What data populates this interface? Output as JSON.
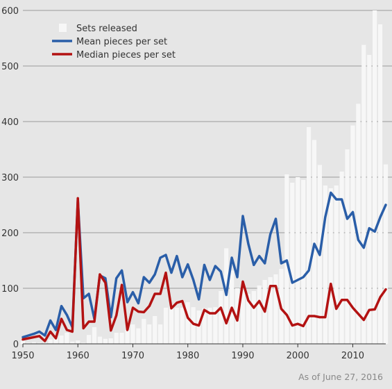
{
  "chart_data": {
    "type": "bar",
    "title": "",
    "xlabel": "",
    "ylabel": "",
    "xlim": [
      1950,
      2016
    ],
    "ylim": [
      0,
      600
    ],
    "grid": true,
    "legend_position": "top-left",
    "footnote": "As of June 27, 2016",
    "x_ticks": [
      1950,
      1960,
      1970,
      1980,
      1990,
      2000,
      2010
    ],
    "y_ticks": [
      0,
      100,
      200,
      300,
      400,
      500,
      600
    ],
    "years": [
      1950,
      1951,
      1952,
      1953,
      1954,
      1955,
      1956,
      1957,
      1958,
      1959,
      1960,
      1961,
      1962,
      1963,
      1964,
      1965,
      1966,
      1967,
      1968,
      1969,
      1970,
      1971,
      1972,
      1973,
      1974,
      1975,
      1976,
      1977,
      1978,
      1979,
      1980,
      1981,
      1982,
      1983,
      1984,
      1985,
      1986,
      1987,
      1988,
      1989,
      1990,
      1991,
      1992,
      1993,
      1994,
      1995,
      1996,
      1997,
      1998,
      1999,
      2000,
      2001,
      2002,
      2003,
      2004,
      2005,
      2006,
      2007,
      2008,
      2009,
      2010,
      2011,
      2012,
      2013,
      2014,
      2015,
      2016
    ],
    "series": [
      {
        "name": "Sets released",
        "kind": "bar",
        "color": "#f7f7f7",
        "values": [
          5,
          2,
          3,
          2,
          2,
          8,
          18,
          15,
          20,
          4,
          6,
          2,
          16,
          30,
          13,
          9,
          10,
          20,
          20,
          25,
          35,
          28,
          45,
          35,
          50,
          35,
          65,
          68,
          65,
          65,
          75,
          66,
          60,
          64,
          65,
          66,
          95,
          172,
          132,
          100,
          100,
          90,
          95,
          105,
          115,
          120,
          125,
          135,
          305,
          290,
          300,
          295,
          390,
          367,
          322,
          285,
          280,
          285,
          310,
          350,
          393,
          432,
          538,
          520,
          600,
          575,
          323
        ]
      },
      {
        "name": "Mean pieces per set",
        "kind": "line",
        "color": "#2a5ea8",
        "values": [
          12,
          15,
          18,
          22,
          15,
          42,
          25,
          68,
          52,
          30,
          258,
          82,
          90,
          45,
          123,
          118,
          48,
          118,
          132,
          75,
          93,
          73,
          120,
          110,
          125,
          155,
          160,
          128,
          158,
          120,
          143,
          115,
          80,
          142,
          115,
          140,
          130,
          88,
          155,
          120,
          230,
          180,
          142,
          158,
          145,
          197,
          225,
          145,
          150,
          110,
          115,
          120,
          132,
          180,
          160,
          228,
          272,
          260,
          260,
          225,
          237,
          187,
          173,
          208,
          202,
          228,
          250
        ]
      },
      {
        "name": "Median pieces per set",
        "kind": "line",
        "color": "#b31212",
        "values": [
          8,
          10,
          12,
          14,
          5,
          22,
          10,
          45,
          25,
          22,
          262,
          28,
          40,
          40,
          125,
          110,
          24,
          51,
          106,
          25,
          65,
          58,
          57,
          68,
          90,
          90,
          128,
          64,
          74,
          77,
          47,
          36,
          33,
          61,
          55,
          55,
          65,
          37,
          65,
          42,
          112,
          78,
          65,
          77,
          58,
          104,
          104,
          63,
          52,
          33,
          36,
          32,
          50,
          50,
          48,
          48,
          108,
          63,
          79,
          79,
          65,
          54,
          43,
          61,
          62,
          84,
          98
        ]
      }
    ]
  }
}
